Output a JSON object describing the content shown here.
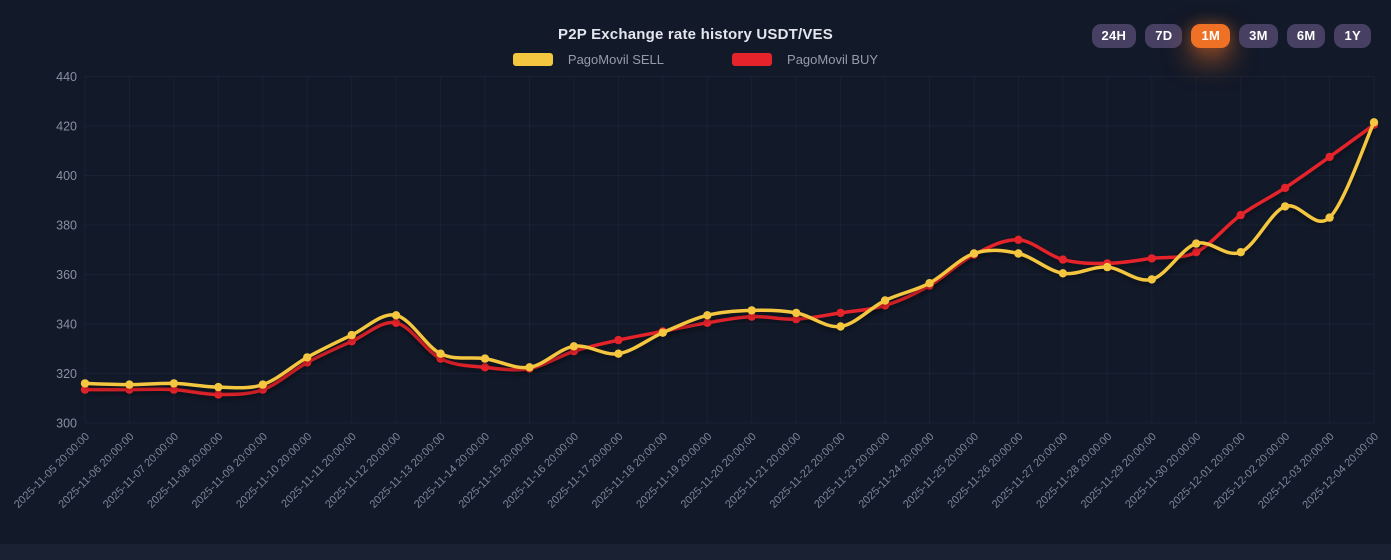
{
  "header": {
    "title": "P2P Exchange rate history USDT/VES",
    "legend": [
      {
        "label": "PagoMovil SELL",
        "color": "#f5c740"
      },
      {
        "label": "PagoMovil BUY",
        "color": "#e5232b"
      }
    ],
    "range_buttons": [
      {
        "label": "24H",
        "active": false
      },
      {
        "label": "7D",
        "active": false
      },
      {
        "label": "1M",
        "active": true
      },
      {
        "label": "3M",
        "active": false
      },
      {
        "label": "6M",
        "active": false
      },
      {
        "label": "1Y",
        "active": false
      }
    ]
  },
  "chart_data": {
    "type": "line",
    "title": "P2P Exchange rate history USDT/VES",
    "x": [
      "2025-11-05 20:00:00",
      "2025-11-06 20:00:00",
      "2025-11-07 20:00:00",
      "2025-11-08 20:00:00",
      "2025-11-09 20:00:00",
      "2025-11-10 20:00:00",
      "2025-11-11 20:00:00",
      "2025-11-12 20:00:00",
      "2025-11-13 20:00:00",
      "2025-11-14 20:00:00",
      "2025-11-15 20:00:00",
      "2025-11-16 20:00:00",
      "2025-11-17 20:00:00",
      "2025-11-18 20:00:00",
      "2025-11-19 20:00:00",
      "2025-11-20 20:00:00",
      "2025-11-21 20:00:00",
      "2025-11-22 20:00:00",
      "2025-11-23 20:00:00",
      "2025-11-24 20:00:00",
      "2025-11-25 20:00:00",
      "2025-11-26 20:00:00",
      "2025-11-27 20:00:00",
      "2025-11-28 20:00:00",
      "2025-11-29 20:00:00",
      "2025-11-30 20:00:00",
      "2025-12-01 20:00:00",
      "2025-12-02 20:00:00",
      "2025-12-03 20:00:00",
      "2025-12-04 20:00:00"
    ],
    "series": [
      {
        "name": "PagoMovil SELL",
        "color": "#f5c740",
        "values": [
          316,
          315.5,
          316,
          314.5,
          315.5,
          326.5,
          335.5,
          343.5,
          328,
          326,
          322.5,
          331,
          328,
          336.5,
          343.5,
          345.5,
          344.5,
          339,
          349.5,
          356.5,
          368.5,
          368.5,
          360.5,
          363,
          358,
          372.5,
          369,
          387.5,
          383,
          421.5
        ]
      },
      {
        "name": "PagoMovil BUY",
        "color": "#e5232b",
        "values": [
          313.5,
          313.5,
          313.5,
          311.5,
          313.5,
          324.5,
          333,
          340.5,
          326,
          322.5,
          322,
          329,
          333.5,
          337,
          340.5,
          343,
          342,
          344.5,
          347.5,
          355.5,
          368,
          374,
          366,
          364.5,
          366.5,
          369,
          384,
          395,
          407.5,
          420.5
        ]
      }
    ],
    "ylim": [
      300,
      440
    ],
    "yticks": [
      300,
      320,
      340,
      360,
      380,
      400,
      420,
      440
    ],
    "grid": true,
    "legend_position": "top",
    "xlabel": "",
    "ylabel": ""
  },
  "colors": {
    "background": "#121928",
    "page_strip": "#1a2133",
    "grid": "#2a3450",
    "y_axis_label": "#8a90a2",
    "x_axis_label": "#7e8598",
    "title": "#e3e6ee",
    "legend_text": "#969ba9",
    "button_bg": "#474063",
    "button_active_bg": "#ef7125",
    "button_text": "#ffffff"
  }
}
